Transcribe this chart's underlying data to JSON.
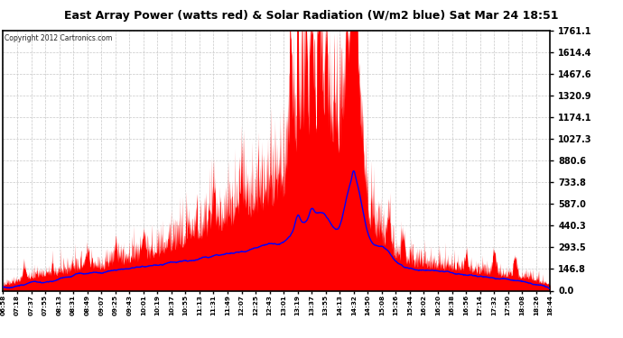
{
  "title": "East Array Power (watts red) & Solar Radiation (W/m2 blue) Sat Mar 24 18:51",
  "copyright": "Copyright 2012 Cartronics.com",
  "y_max": 1761.1,
  "y_ticks": [
    0.0,
    146.8,
    293.5,
    440.3,
    587.0,
    733.8,
    880.6,
    1027.3,
    1174.1,
    1320.9,
    1467.6,
    1614.4,
    1761.1
  ],
  "x_labels": [
    "06:58",
    "07:18",
    "07:37",
    "07:55",
    "08:13",
    "08:31",
    "08:49",
    "09:07",
    "09:25",
    "09:43",
    "10:01",
    "10:19",
    "10:37",
    "10:55",
    "11:13",
    "11:31",
    "11:49",
    "12:07",
    "12:25",
    "12:43",
    "13:01",
    "13:19",
    "13:37",
    "13:55",
    "14:13",
    "14:32",
    "14:50",
    "15:08",
    "15:26",
    "15:44",
    "16:02",
    "16:20",
    "16:38",
    "16:56",
    "17:14",
    "17:32",
    "17:50",
    "18:08",
    "18:26",
    "18:44"
  ],
  "bg_color": "#ffffff",
  "grid_color": "#c8c8c8",
  "fill_color": "#ff0000",
  "line_color": "#0000ff",
  "border_color": "#000000"
}
